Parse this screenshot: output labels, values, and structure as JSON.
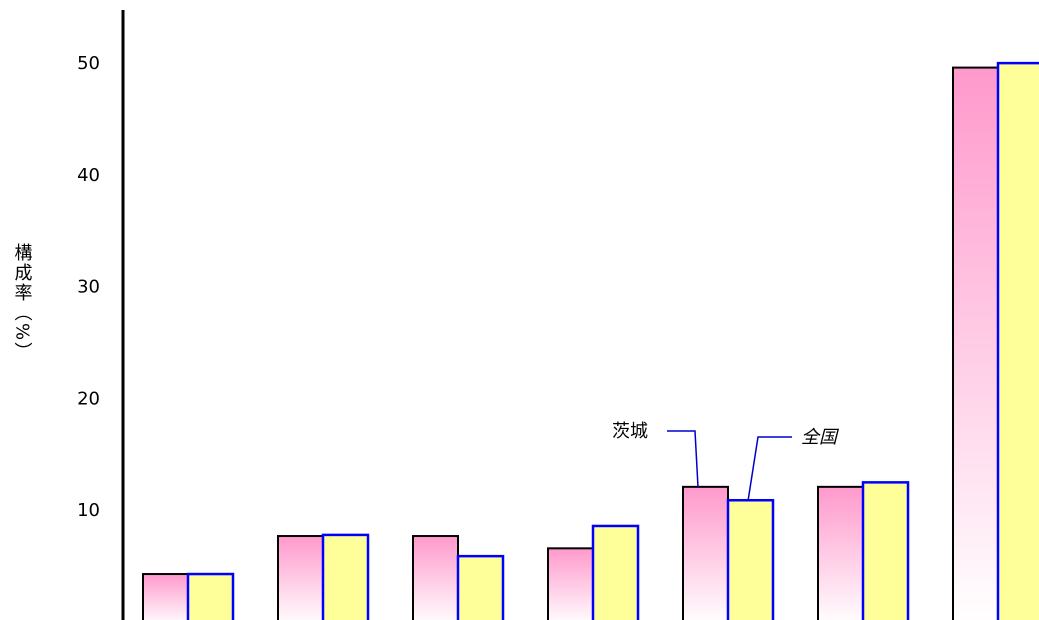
{
  "chart_data": {
    "type": "bar",
    "ylabel": "構成率（%）",
    "ylim": [
      0,
      50
    ],
    "yticks": [
      10,
      20,
      30,
      40,
      50
    ],
    "categories": [
      "",
      "",
      "",
      "",
      "",
      "",
      ""
    ],
    "series": [
      {
        "name": "茨城",
        "values": [
          4.2,
          7.6,
          7.6,
          6.5,
          12.0,
          12.0,
          49.5
        ]
      },
      {
        "name": "全国",
        "values": [
          4.2,
          7.7,
          5.8,
          8.5,
          10.8,
          12.4,
          49.9
        ]
      }
    ],
    "annotations": [
      "茨城",
      "全国"
    ],
    "colors": {
      "series1_fill_top": "#ff99cc",
      "series1_fill_bottom": "#ffffff",
      "series1_stroke": "#000000",
      "series2_fill": "#ffff99",
      "series2_stroke": "#0000ff",
      "leader_line": "#0000cc"
    }
  }
}
